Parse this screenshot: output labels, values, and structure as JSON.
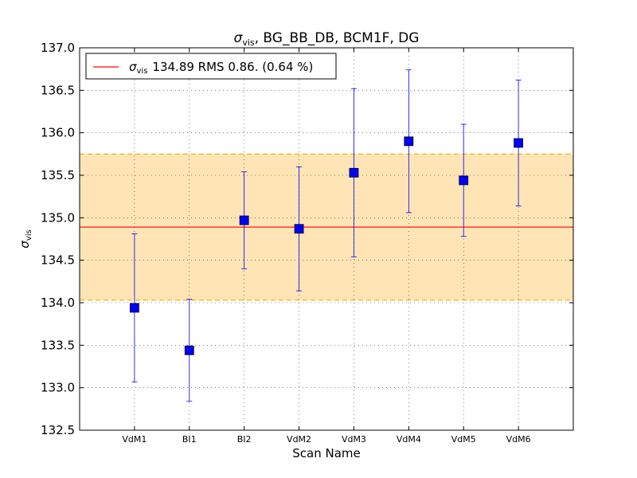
{
  "chart_data": {
    "type": "scatter",
    "title": "σvis, BG_BB_DB, BCM1F, DG",
    "title_symbol_base": "σ",
    "title_symbol_sub": "vis",
    "title_rest": ", BG_BB_DB, BCM1F, DG",
    "xlabel": "Scan Name",
    "ylabel": "σvis",
    "ylabel_symbol_base": "σ",
    "ylabel_symbol_sub": "vis",
    "categories": [
      "VdM1",
      "BI1",
      "BI2",
      "VdM2",
      "VdM3",
      "VdM4",
      "VdM5",
      "VdM6"
    ],
    "series": [
      {
        "values": [
          133.94,
          133.44,
          134.97,
          134.87,
          135.53,
          135.9,
          135.44,
          135.88
        ],
        "errors": [
          0.87,
          0.6,
          0.57,
          0.73,
          0.99,
          0.84,
          0.66,
          0.74
        ],
        "marker": "square",
        "color": "#0000ff"
      }
    ],
    "mean": 134.89,
    "rms": 0.86,
    "mean_line_color": "#ff0000",
    "band_color": "#ffe4b5",
    "band_edge_color": "#ffa500",
    "legend": {
      "position": "top-left",
      "symbol_base": "σ",
      "symbol_sub": "vis",
      "text": "134.89 RMS 0.86. (0.64 %)"
    },
    "ylim": [
      132.5,
      137.0
    ],
    "yticks": [
      "132.5",
      "133.0",
      "133.5",
      "134.0",
      "134.5",
      "135.0",
      "135.5",
      "136.0",
      "136.5",
      "137.0"
    ],
    "grid": true
  }
}
